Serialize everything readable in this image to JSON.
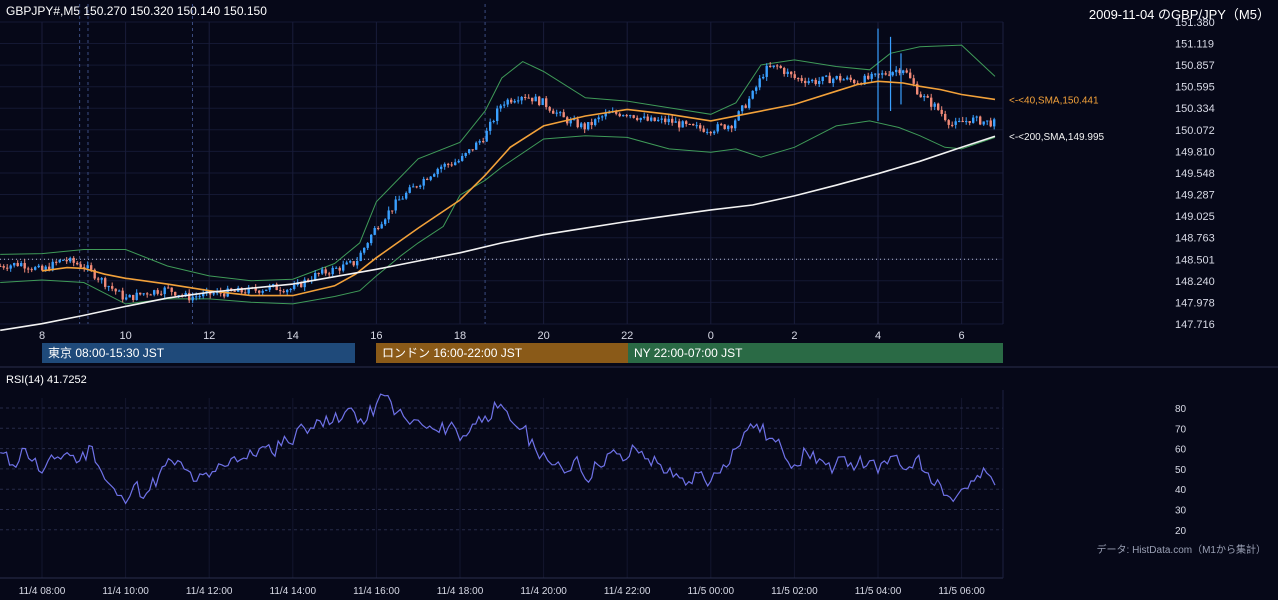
{
  "header": {
    "symbol_line": "GBPJPY#,M5 150.270 150.320 150.140 150.150",
    "date_title": "2009-11-04 のGBP/JPY（M5）"
  },
  "sessions": [
    {
      "label": "東京 08:00-15:30 JST",
      "color": "#1f4a7a"
    },
    {
      "label": "ロンドン 16:00-22:00 JST",
      "color": "#8a5a18"
    },
    {
      "label": "NY 22:00-07:00 JST",
      "color": "#2a6a45"
    }
  ],
  "rsi": {
    "label": "RSI(14) 41.7252"
  },
  "source_note": "データ: HistData.com（M1から集計）",
  "chart_data": [
    {
      "type": "candlestick",
      "price_ticks": [
        "151.380",
        "151.119",
        "150.857",
        "150.595",
        "150.334",
        "150.072",
        "149.810",
        "149.548",
        "149.287",
        "149.025",
        "148.763",
        "148.501",
        "148.240",
        "147.978",
        "147.716"
      ],
      "ylim": [
        147.716,
        151.38
      ],
      "x_hour_ticks": [
        "8",
        "10",
        "12",
        "14",
        "16",
        "18",
        "20",
        "22",
        "0",
        "2",
        "4",
        "6"
      ],
      "reference_level": 148.501,
      "grid": true,
      "series": [
        {
          "name": "40,SMA",
          "label": "<-<40,SMA,150.441",
          "last": 150.441,
          "color": "#f2a13a",
          "path": [
            [
              8,
              148.36
            ],
            [
              8.6,
              148.4
            ],
            [
              9.0,
              148.39
            ],
            [
              9.5,
              148.32
            ],
            [
              10,
              148.27
            ],
            [
              11,
              148.2
            ],
            [
              12,
              148.12
            ],
            [
              13,
              148.06
            ],
            [
              14,
              148.06
            ],
            [
              15,
              148.18
            ],
            [
              15.5,
              148.32
            ],
            [
              16,
              148.52
            ],
            [
              17,
              148.88
            ],
            [
              18,
              149.22
            ],
            [
              18.6,
              149.52
            ],
            [
              19.2,
              149.86
            ],
            [
              20,
              150.12
            ],
            [
              21,
              150.24
            ],
            [
              22,
              150.32
            ],
            [
              23,
              150.26
            ],
            [
              0,
              150.18
            ],
            [
              1,
              150.28
            ],
            [
              2,
              150.38
            ],
            [
              3,
              150.54
            ],
            [
              3.5,
              150.62
            ],
            [
              4,
              150.66
            ],
            [
              4.6,
              150.64
            ],
            [
              5,
              150.6
            ],
            [
              5.5,
              150.56
            ],
            [
              6,
              150.5
            ],
            [
              6.8,
              150.441
            ]
          ]
        },
        {
          "name": "200,SMA",
          "label": "<-<200,SMA,149.995",
          "last": 149.995,
          "color": "#f2f2f2",
          "path": [
            [
              7.0,
              147.64
            ],
            [
              8,
              147.72
            ],
            [
              9,
              147.82
            ],
            [
              10,
              147.93
            ],
            [
              11,
              148.03
            ],
            [
              12,
              148.1
            ],
            [
              13,
              148.15
            ],
            [
              14,
              148.2
            ],
            [
              15,
              148.29
            ],
            [
              16,
              148.38
            ],
            [
              17,
              148.48
            ],
            [
              18,
              148.58
            ],
            [
              19,
              148.7
            ],
            [
              20,
              148.8
            ],
            [
              21,
              148.88
            ],
            [
              22,
              148.96
            ],
            [
              23,
              149.03
            ],
            [
              0,
              149.1
            ],
            [
              1,
              149.16
            ],
            [
              2,
              149.27
            ],
            [
              3,
              149.4
            ],
            [
              4,
              149.54
            ],
            [
              5,
              149.69
            ],
            [
              6,
              149.86
            ],
            [
              6.8,
              149.995
            ]
          ]
        },
        {
          "name": "Bollinger upper",
          "color": "#3f9a58",
          "path": [
            [
              7.0,
              148.56
            ],
            [
              8,
              148.57
            ],
            [
              9,
              148.62
            ],
            [
              10,
              148.62
            ],
            [
              11,
              148.42
            ],
            [
              12,
              148.3
            ],
            [
              13,
              148.24
            ],
            [
              14,
              148.26
            ],
            [
              15,
              148.45
            ],
            [
              15.6,
              148.7
            ],
            [
              16,
              149.2
            ],
            [
              17,
              149.72
            ],
            [
              18,
              149.92
            ],
            [
              18.6,
              150.3
            ],
            [
              19,
              150.7
            ],
            [
              19.5,
              150.9
            ],
            [
              20,
              150.78
            ],
            [
              21,
              150.46
            ],
            [
              22,
              150.42
            ],
            [
              23,
              150.34
            ],
            [
              0,
              150.26
            ],
            [
              0.6,
              150.4
            ],
            [
              1.2,
              150.86
            ],
            [
              2,
              150.92
            ],
            [
              3,
              150.84
            ],
            [
              3.8,
              150.8
            ],
            [
              4.3,
              151.0
            ],
            [
              5,
              151.08
            ],
            [
              6,
              151.1
            ],
            [
              6.8,
              150.72
            ]
          ]
        },
        {
          "name": "Bollinger lower",
          "color": "#3f9a58",
          "path": [
            [
              7.0,
              148.22
            ],
            [
              8,
              148.25
            ],
            [
              9,
              148.22
            ],
            [
              10,
              147.96
            ],
            [
              11,
              148.02
            ],
            [
              12,
              148.02
            ],
            [
              13,
              147.98
            ],
            [
              14,
              147.96
            ],
            [
              15,
              148.05
            ],
            [
              15.6,
              148.12
            ],
            [
              16,
              148.3
            ],
            [
              16.6,
              148.55
            ],
            [
              17,
              148.7
            ],
            [
              17.6,
              148.9
            ],
            [
              18,
              149.28
            ],
            [
              18.6,
              149.46
            ],
            [
              19,
              149.62
            ],
            [
              20,
              149.96
            ],
            [
              21,
              150.0
            ],
            [
              22,
              149.98
            ],
            [
              23,
              149.84
            ],
            [
              0,
              149.8
            ],
            [
              0.6,
              149.84
            ],
            [
              1.2,
              149.74
            ],
            [
              2,
              149.86
            ],
            [
              3,
              150.12
            ],
            [
              3.8,
              150.18
            ],
            [
              4.5,
              150.1
            ],
            [
              5,
              150.0
            ],
            [
              5.6,
              149.86
            ],
            [
              6,
              149.84
            ],
            [
              6.8,
              149.98
            ]
          ]
        }
      ],
      "candle_path": [
        [
          7.0,
          148.42
        ],
        [
          7.5,
          148.45
        ],
        [
          8,
          148.36
        ],
        [
          8.5,
          148.5
        ],
        [
          9.0,
          148.42
        ],
        [
          9.5,
          148.22
        ],
        [
          10,
          148.02
        ],
        [
          10.5,
          148.1
        ],
        [
          11,
          148.14
        ],
        [
          11.5,
          148.04
        ],
        [
          12,
          148.08
        ],
        [
          12.5,
          148.1
        ],
        [
          13,
          148.12
        ],
        [
          13.5,
          148.16
        ],
        [
          14,
          148.14
        ],
        [
          14.5,
          148.3
        ],
        [
          15,
          148.38
        ],
        [
          15.5,
          148.46
        ],
        [
          16,
          148.9
        ],
        [
          16.5,
          149.2
        ],
        [
          17,
          149.42
        ],
        [
          17.5,
          149.62
        ],
        [
          18,
          149.7
        ],
        [
          18.6,
          150.0
        ],
        [
          19,
          150.4
        ],
        [
          19.5,
          150.5
        ],
        [
          20,
          150.4
        ],
        [
          20.5,
          150.2
        ],
        [
          21,
          150.1
        ],
        [
          21.5,
          150.26
        ],
        [
          22,
          150.28
        ],
        [
          22.5,
          150.18
        ],
        [
          23,
          150.18
        ],
        [
          23.5,
          150.1
        ],
        [
          0,
          150.08
        ],
        [
          0.5,
          150.14
        ],
        [
          1.0,
          150.5
        ],
        [
          1.3,
          150.8
        ],
        [
          1.6,
          150.84
        ],
        [
          2,
          150.7
        ],
        [
          2.5,
          150.66
        ],
        [
          3,
          150.7
        ],
        [
          3.5,
          150.66
        ],
        [
          4,
          150.72
        ],
        [
          4.3,
          150.78
        ],
        [
          4.6,
          150.82
        ],
        [
          5,
          150.5
        ],
        [
          5.4,
          150.34
        ],
        [
          5.8,
          150.12
        ],
        [
          6.2,
          150.2
        ],
        [
          6.8,
          150.15
        ]
      ],
      "spikes": [
        [
          4.0,
          151.3,
          150.18
        ],
        [
          4.3,
          151.2,
          150.3
        ],
        [
          4.55,
          151.0,
          150.38
        ]
      ]
    },
    {
      "type": "line",
      "title": "RSI(14) 41.7252",
      "ylim": [
        15,
        90
      ],
      "y_ticks": [
        80,
        70,
        60,
        50,
        40,
        30,
        20
      ],
      "x_tick_labels": [
        "11/4 08:00",
        "11/4 10:00",
        "11/4 12:00",
        "11/4 14:00",
        "11/4 16:00",
        "11/4 18:00",
        "11/4 20:00",
        "11/4 22:00",
        "11/5 00:00",
        "11/5 02:00",
        "11/5 04:00",
        "11/5 06:00"
      ],
      "series": [
        {
          "name": "RSI(14)",
          "color": "#6f72e8",
          "path": [
            [
              7.0,
              58
            ],
            [
              7.3,
              52
            ],
            [
              7.6,
              60
            ],
            [
              8.0,
              48
            ],
            [
              8.3,
              55
            ],
            [
              8.6,
              58
            ],
            [
              8.9,
              54
            ],
            [
              9.2,
              61
            ],
            [
              9.5,
              45
            ],
            [
              9.8,
              37
            ],
            [
              10.0,
              33
            ],
            [
              10.2,
              42
            ],
            [
              10.5,
              38
            ],
            [
              10.8,
              47
            ],
            [
              11.1,
              54
            ],
            [
              11.4,
              50
            ],
            [
              11.7,
              44
            ],
            [
              12.0,
              46
            ],
            [
              12.3,
              52
            ],
            [
              12.6,
              56
            ],
            [
              12.9,
              55
            ],
            [
              13.2,
              60
            ],
            [
              13.5,
              58
            ],
            [
              13.8,
              66
            ],
            [
              14.0,
              62
            ],
            [
              14.2,
              72
            ],
            [
              14.5,
              70
            ],
            [
              14.8,
              76
            ],
            [
              15.1,
              73
            ],
            [
              15.4,
              80
            ],
            [
              15.7,
              72
            ],
            [
              16.0,
              82
            ],
            [
              16.2,
              86
            ],
            [
              16.5,
              78
            ],
            [
              16.8,
              72
            ],
            [
              17.0,
              74
            ],
            [
              17.2,
              70
            ],
            [
              17.5,
              68
            ],
            [
              17.8,
              73
            ],
            [
              18.0,
              64
            ],
            [
              18.3,
              72
            ],
            [
              18.6,
              76
            ],
            [
              18.9,
              80
            ],
            [
              19.2,
              74
            ],
            [
              19.5,
              70
            ],
            [
              19.8,
              60
            ],
            [
              20.0,
              58
            ],
            [
              20.2,
              52
            ],
            [
              20.5,
              48
            ],
            [
              20.8,
              56
            ],
            [
              21.0,
              45
            ],
            [
              21.3,
              52
            ],
            [
              21.6,
              58
            ],
            [
              21.9,
              54
            ],
            [
              22.2,
              60
            ],
            [
              22.5,
              55
            ],
            [
              22.8,
              52
            ],
            [
              23.1,
              46
            ],
            [
              23.4,
              42
            ],
            [
              23.7,
              48
            ],
            [
              0.0,
              44
            ],
            [
              0.3,
              52
            ],
            [
              0.6,
              60
            ],
            [
              0.8,
              68
            ],
            [
              1.1,
              72
            ],
            [
              1.4,
              65
            ],
            [
              1.7,
              60
            ],
            [
              2.0,
              52
            ],
            [
              2.3,
              58
            ],
            [
              2.6,
              55
            ],
            [
              2.9,
              48
            ],
            [
              3.2,
              56
            ],
            [
              3.5,
              52
            ],
            [
              3.8,
              54
            ],
            [
              4.0,
              48
            ],
            [
              4.3,
              56
            ],
            [
              4.6,
              50
            ],
            [
              4.9,
              55
            ],
            [
              5.2,
              48
            ],
            [
              5.5,
              42
            ],
            [
              5.8,
              34
            ],
            [
              6.0,
              40
            ],
            [
              6.3,
              44
            ],
            [
              6.6,
              48
            ],
            [
              6.8,
              42
            ]
          ]
        }
      ]
    }
  ]
}
